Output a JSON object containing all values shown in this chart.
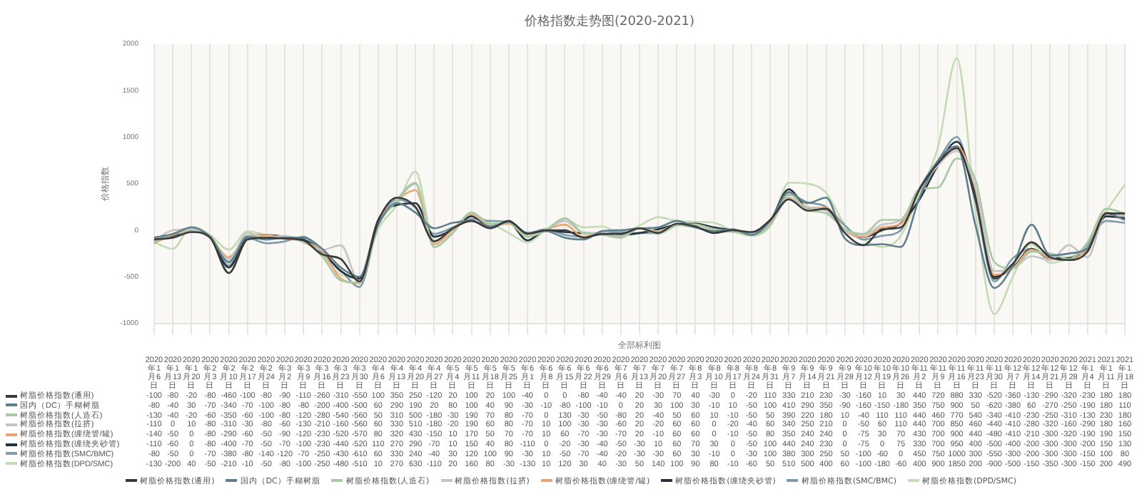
{
  "chart_data": {
    "type": "line",
    "title": "价格指数走势图(2020-2021)",
    "ylabel": "价格指数",
    "xlabel": "全部标利图",
    "categories": [
      "2020年1月6日",
      "2020年1月13日",
      "2020年1月20日",
      "2020年2月3日",
      "2020年2月10日",
      "2020年2月17日",
      "2020年2月24日",
      "2020年3月2日",
      "2020年3月9日",
      "2020年3月16日",
      "2020年3月23日",
      "2020年3月30日",
      "2020年4月6日",
      "2020年4月13日",
      "2020年4月20日",
      "2020年4月27日",
      "2020年5月4日",
      "2020年5月11日",
      "2020年5月18日",
      "2020年5月25日",
      "2020年6月1日",
      "2020年6月8日",
      "2020年6月15日",
      "2020年6月22日",
      "2020年6月29日",
      "2020年7月6日",
      "2020年7月13日",
      "2020年7月20日",
      "2020年7月27日",
      "2020年8月3日",
      "2020年8月10日",
      "2020年8月17日",
      "2020年8月24日",
      "2020年8月31日",
      "2020年9月7日",
      "2020年9月14日",
      "2020年9月21日",
      "2020年9月28日",
      "2020年10月12日",
      "2020年10月19日",
      "2020年10月26日",
      "2020年11月2日",
      "2020年11月9日",
      "2020年11月16日",
      "2020年11月23日",
      "2020年11月30日",
      "2020年12月7日",
      "2020年12月14日",
      "2020年12月21日",
      "2020年12月28日",
      "2021年1月4日",
      "2021年1月11日",
      "2021年1月18日"
    ],
    "series": [
      {
        "name": "树脂价格指数(通用)",
        "color": "#3a3a3a",
        "values": [
          -100,
          -80,
          -20,
          -80,
          -460,
          -100,
          -80,
          -90,
          -110,
          -260,
          -310,
          -550,
          100,
          350,
          250,
          -120,
          20,
          100,
          20,
          100,
          -40,
          0,
          0,
          -80,
          -40,
          -40,
          20,
          -30,
          70,
          40,
          -30,
          0,
          -20,
          110,
          330,
          210,
          230,
          -30,
          -160,
          10,
          30,
          440,
          720,
          880,
          330,
          -520,
          -360,
          -130,
          -290,
          -320,
          -230,
          180,
          180
        ]
      },
      {
        "name": "国内（DC）手糊树脂",
        "color": "#5f7f8c",
        "values": [
          -80,
          -40,
          30,
          -70,
          -340,
          -70,
          -100,
          -80,
          -80,
          -200,
          -400,
          -500,
          60,
          290,
          190,
          20,
          80,
          100,
          40,
          90,
          -30,
          -10,
          -80,
          -100,
          -10,
          0,
          20,
          30,
          100,
          30,
          -10,
          10,
          -50,
          100,
          410,
          290,
          350,
          -90,
          -160,
          -150,
          -180,
          350,
          750,
          900,
          50,
          -620,
          -380,
          60,
          -270,
          -250,
          -190,
          180,
          110
        ]
      },
      {
        "name": "树脂价格指数(人造石)",
        "color": "#a9c9a4",
        "values": [
          -130,
          -40,
          -20,
          -60,
          -350,
          -60,
          -100,
          -80,
          -120,
          -280,
          -540,
          -560,
          50,
          310,
          500,
          -180,
          -30,
          190,
          70,
          80,
          -70,
          0,
          130,
          -30,
          -50,
          -80,
          20,
          -40,
          50,
          60,
          10,
          -10,
          -50,
          50,
          390,
          220,
          180,
          10,
          -40,
          110,
          110,
          440,
          460,
          770,
          540,
          -340,
          -410,
          -230,
          -250,
          -310,
          -130,
          230,
          180
        ]
      },
      {
        "name": "树脂价格指数(拉挤)",
        "color": "#c4c4c4",
        "values": [
          -110,
          0,
          10,
          -80,
          -310,
          -30,
          -80,
          -60,
          -130,
          -210,
          -160,
          -560,
          60,
          330,
          510,
          -180,
          -20,
          190,
          60,
          80,
          -70,
          10,
          100,
          -30,
          -30,
          -60,
          20,
          -20,
          60,
          60,
          0,
          -20,
          -40,
          60,
          340,
          250,
          210,
          0,
          -50,
          60,
          110,
          440,
          700,
          850,
          460,
          -440,
          -410,
          -280,
          -320,
          -160,
          -290,
          180,
          160
        ]
      },
      {
        "name": "树脂价格指数(缠绕管/罐)",
        "color": "#e9a674",
        "values": [
          -140,
          -50,
          0,
          -80,
          -290,
          -60,
          -50,
          -90,
          -120,
          -230,
          -520,
          -570,
          80,
          320,
          430,
          -150,
          10,
          170,
          50,
          70,
          -70,
          10,
          60,
          -70,
          -30,
          -70,
          20,
          -10,
          60,
          60,
          0,
          -10,
          -50,
          80,
          350,
          240,
          240,
          0,
          -75,
          30,
          70,
          430,
          700,
          900,
          440,
          -480,
          -410,
          -210,
          -300,
          -320,
          -190,
          190,
          150
        ]
      },
      {
        "name": "树脂价格指数(缠绕夹砂管)",
        "color": "#26323d",
        "values": [
          -110,
          -60,
          0,
          -80,
          -400,
          -70,
          -50,
          -70,
          -100,
          -230,
          -440,
          -520,
          110,
          270,
          290,
          -70,
          10,
          150,
          40,
          80,
          -110,
          0,
          -20,
          -30,
          -40,
          -50,
          -30,
          10,
          60,
          70,
          30,
          0,
          -50,
          100,
          440,
          240,
          230,
          0,
          -75,
          0,
          75,
          330,
          700,
          950,
          400,
          -500,
          -400,
          -200,
          -300,
          -300,
          -200,
          150,
          130
        ]
      },
      {
        "name": "树脂价格指数(SMC/BMC)",
        "color": "#7d9cab",
        "values": [
          -80,
          -50,
          0,
          -70,
          -380,
          -80,
          -140,
          -120,
          -70,
          -250,
          -430,
          -610,
          60,
          330,
          240,
          -40,
          30,
          120,
          100,
          90,
          -30,
          10,
          -50,
          -70,
          -40,
          -20,
          -30,
          -30,
          60,
          30,
          -10,
          0,
          -30,
          100,
          380,
          300,
          250,
          50,
          -100,
          -60,
          0,
          450,
          750,
          1000,
          300,
          -550,
          -300,
          -200,
          -300,
          -300,
          -150,
          100,
          80
        ]
      },
      {
        "name": "树脂价格指数(DPD/SMC)",
        "color": "#c5dbb5",
        "values": [
          -130,
          -200,
          40,
          -50,
          -210,
          -10,
          -50,
          -80,
          -100,
          -250,
          -480,
          -510,
          10,
          270,
          630,
          -110,
          20,
          160,
          80,
          -30,
          -130,
          10,
          120,
          30,
          40,
          -30,
          50,
          140,
          100,
          90,
          80,
          -10,
          -60,
          50,
          510,
          500,
          400,
          60,
          -100,
          -180,
          -60,
          400,
          900,
          1850,
          200,
          -900,
          -500,
          -150,
          -350,
          -300,
          -150,
          200,
          490
        ]
      }
    ],
    "ylim": [
      -1000,
      2000
    ],
    "yticks": [
      -1000,
      -500,
      0,
      500,
      1000,
      1500,
      2000
    ],
    "grid": "x",
    "legend": "bottom",
    "marker": "none",
    "line_style": "solid",
    "tick_labels": "y",
    "data_labels": true
  }
}
